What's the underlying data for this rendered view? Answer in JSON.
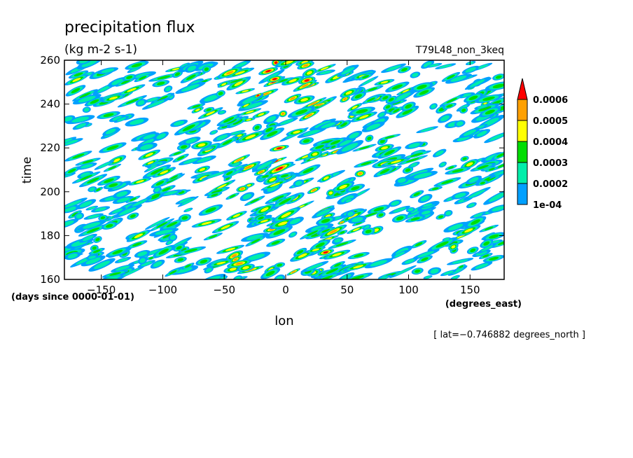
{
  "chart_data": {
    "type": "heatmap",
    "title": "precipitation flux",
    "units": "(kg m-2 s-1)",
    "experiment": "T79L48_non_3keq",
    "xlabel": "lon",
    "xunits": "(degrees_east)",
    "ylabel": "time",
    "yunits": "(days since 0000-01-01)",
    "xlim": [
      -180,
      177.75
    ],
    "ylim": [
      160,
      260
    ],
    "x_ticks": [
      -150,
      -100,
      -50,
      0,
      50,
      100,
      150
    ],
    "y_ticks": [
      160,
      180,
      200,
      220,
      240,
      260
    ],
    "x_tick_labels": [
      "−150",
      "−100",
      "−50",
      "0",
      "50",
      "100",
      "150"
    ],
    "y_tick_labels": [
      "160",
      "180",
      "200",
      "220",
      "240",
      "260"
    ],
    "annotation": "[ lat=−0.746882 degrees_north ]",
    "colorbar": {
      "levels": [
        0.0001,
        0.0002,
        0.0003,
        0.0004,
        0.0005,
        0.0006
      ],
      "labels": [
        "1e-04",
        "0.0002",
        "0.0003",
        "0.0004",
        "0.0005",
        "0.0006"
      ],
      "colors": [
        "#00a0ff",
        "#00eeaa",
        "#00dd00",
        "#ffff00",
        "#ffa000",
        "#ff0000"
      ],
      "extend": "max"
    }
  }
}
